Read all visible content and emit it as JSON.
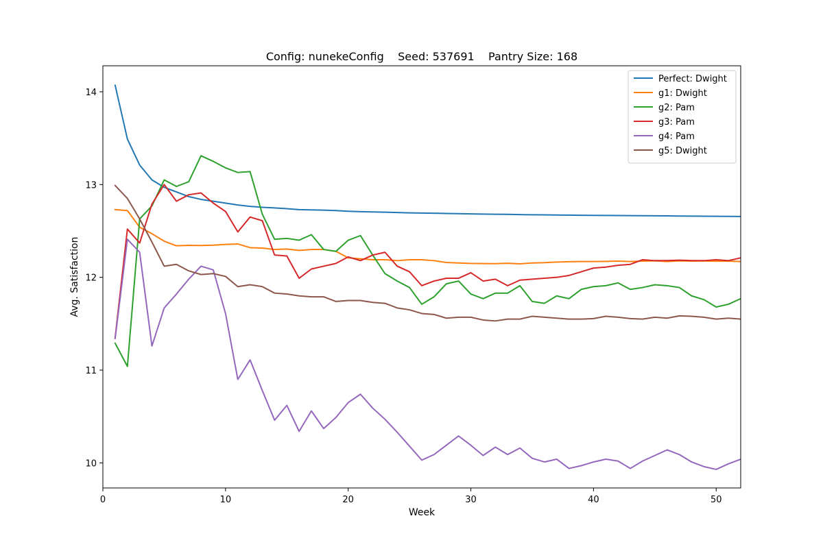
{
  "chart_data": {
    "type": "line",
    "title": "Config: nunekeConfig    Seed: 537691    Pantry Size: 168",
    "xlabel": "Week",
    "ylabel": "Avg. Satisfaction",
    "xlim": [
      0,
      52
    ],
    "ylim": [
      9.73,
      14.28
    ],
    "xticks": [
      0,
      10,
      20,
      30,
      40,
      50
    ],
    "yticks": [
      10,
      11,
      12,
      13,
      14
    ],
    "grid": false,
    "legend_position": "top-right",
    "x": [
      1,
      2,
      3,
      4,
      5,
      6,
      7,
      8,
      9,
      10,
      11,
      12,
      13,
      14,
      15,
      16,
      17,
      18,
      19,
      20,
      21,
      22,
      23,
      24,
      25,
      26,
      27,
      28,
      29,
      30,
      31,
      32,
      33,
      34,
      35,
      36,
      37,
      38,
      39,
      40,
      41,
      42,
      43,
      44,
      45,
      46,
      47,
      48,
      49,
      50,
      51,
      52
    ],
    "series": [
      {
        "name": "Perfect: Dwight",
        "color": "#1f77b4",
        "values": [
          14.07,
          13.49,
          13.21,
          13.05,
          12.97,
          12.92,
          12.87,
          12.84,
          12.82,
          12.8,
          12.78,
          12.765,
          12.755,
          12.748,
          12.74,
          12.73,
          12.727,
          12.724,
          12.72,
          12.712,
          12.708,
          12.705,
          12.702,
          12.698,
          12.695,
          12.693,
          12.691,
          12.688,
          12.686,
          12.684,
          12.682,
          12.68,
          12.679,
          12.676,
          12.674,
          12.673,
          12.672,
          12.671,
          12.669,
          12.668,
          12.667,
          12.666,
          12.665,
          12.664,
          12.663,
          12.662,
          12.661,
          12.66,
          12.659,
          12.658,
          12.657,
          12.656
        ]
      },
      {
        "name": "g1: Dwight",
        "color": "#ff7f0e",
        "values": [
          12.73,
          12.72,
          12.54,
          12.47,
          12.39,
          12.34,
          12.345,
          12.343,
          12.347,
          12.355,
          12.36,
          12.32,
          12.315,
          12.3,
          12.305,
          12.29,
          12.3,
          12.3,
          12.28,
          12.21,
          12.2,
          12.19,
          12.19,
          12.18,
          12.19,
          12.19,
          12.18,
          12.16,
          12.155,
          12.15,
          12.148,
          12.147,
          12.152,
          12.145,
          12.155,
          12.158,
          12.165,
          12.168,
          12.17,
          12.17,
          12.172,
          12.175,
          12.17,
          12.175,
          12.178,
          12.17,
          12.178,
          12.175,
          12.176,
          12.174,
          12.175,
          12.17
        ]
      },
      {
        "name": "g2: Pam",
        "color": "#2ca02c",
        "values": [
          11.29,
          11.04,
          12.63,
          12.77,
          13.05,
          12.98,
          13.03,
          13.31,
          13.25,
          13.18,
          13.13,
          13.14,
          12.68,
          12.41,
          12.42,
          12.4,
          12.46,
          12.3,
          12.28,
          12.4,
          12.45,
          12.24,
          12.04,
          11.96,
          11.89,
          11.71,
          11.79,
          11.93,
          11.96,
          11.82,
          11.77,
          11.83,
          11.83,
          11.91,
          11.74,
          11.72,
          11.8,
          11.77,
          11.87,
          11.9,
          11.91,
          11.94,
          11.87,
          11.89,
          11.92,
          11.91,
          11.89,
          11.8,
          11.76,
          11.68,
          11.71,
          11.77
        ]
      },
      {
        "name": "g3: Pam",
        "color": "#d62728",
        "values": [
          11.35,
          12.52,
          12.37,
          12.79,
          13.0,
          12.82,
          12.89,
          12.91,
          12.8,
          12.71,
          12.49,
          12.65,
          12.61,
          12.24,
          12.23,
          11.99,
          12.09,
          12.12,
          12.15,
          12.22,
          12.18,
          12.24,
          12.27,
          12.12,
          12.06,
          11.91,
          11.96,
          11.99,
          11.99,
          12.05,
          11.96,
          11.98,
          11.91,
          11.97,
          11.98,
          11.99,
          12.0,
          12.02,
          12.06,
          12.1,
          12.11,
          12.13,
          12.14,
          12.19,
          12.18,
          12.18,
          12.185,
          12.18,
          12.18,
          12.19,
          12.18,
          12.21
        ]
      },
      {
        "name": "g4: Pam",
        "color": "#9467bd",
        "values": [
          11.34,
          12.41,
          12.27,
          11.26,
          11.67,
          11.82,
          11.98,
          12.12,
          12.08,
          11.61,
          10.9,
          11.11,
          10.78,
          10.46,
          10.62,
          10.34,
          10.56,
          10.37,
          10.49,
          10.65,
          10.74,
          10.59,
          10.47,
          10.33,
          10.18,
          10.03,
          10.09,
          10.19,
          10.29,
          10.19,
          10.08,
          10.17,
          10.09,
          10.16,
          10.05,
          10.01,
          10.04,
          9.94,
          9.97,
          10.01,
          10.04,
          10.02,
          9.94,
          10.02,
          10.08,
          10.14,
          10.09,
          10.01,
          9.96,
          9.93,
          9.99,
          10.04
        ]
      },
      {
        "name": "g5: Dwight",
        "color": "#8c564b",
        "values": [
          12.99,
          12.85,
          12.63,
          12.38,
          12.12,
          12.14,
          12.07,
          12.03,
          12.04,
          12.01,
          11.9,
          11.92,
          11.9,
          11.83,
          11.82,
          11.8,
          11.79,
          11.79,
          11.74,
          11.75,
          11.75,
          11.73,
          11.72,
          11.67,
          11.65,
          11.61,
          11.6,
          11.56,
          11.57,
          11.57,
          11.54,
          11.53,
          11.55,
          11.55,
          11.58,
          11.57,
          11.56,
          11.55,
          11.55,
          11.555,
          11.58,
          11.57,
          11.555,
          11.55,
          11.57,
          11.56,
          11.585,
          11.58,
          11.57,
          11.55,
          11.56,
          11.55
        ]
      }
    ]
  }
}
